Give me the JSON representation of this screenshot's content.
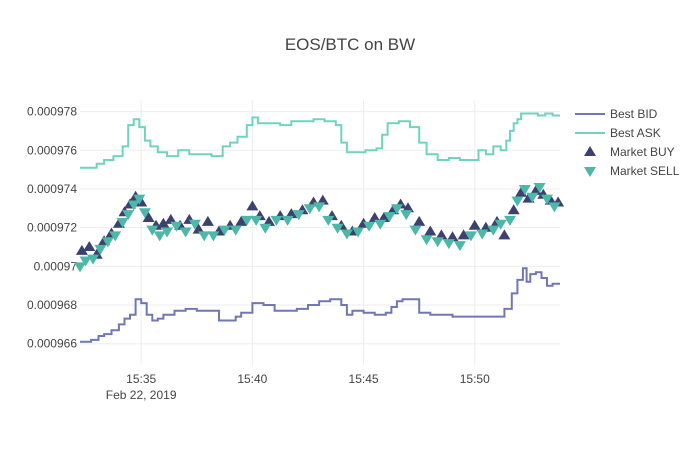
{
  "chart_data": {
    "type": "line",
    "title": "EOS/BTC on BW",
    "xlabel": "",
    "ylabel": "",
    "x_ticks": [
      {
        "label": "15:35",
        "sublabel": "Feb 22, 2019",
        "value": "15:35"
      },
      {
        "label": "15:40",
        "sublabel": "",
        "value": "15:40"
      },
      {
        "label": "15:45",
        "sublabel": "",
        "value": "15:45"
      },
      {
        "label": "15:50",
        "sublabel": "",
        "value": "15:50"
      }
    ],
    "y_ticks": [
      {
        "label": "0.000966",
        "value": 0.000966
      },
      {
        "label": "0.000968",
        "value": 0.000968
      },
      {
        "label": "0.00097",
        "value": 0.00097
      },
      {
        "label": "0.000972",
        "value": 0.000972
      },
      {
        "label": "0.000974",
        "value": 0.000974
      },
      {
        "label": "0.000976",
        "value": 0.000976
      },
      {
        "label": "0.000978",
        "value": 0.000978
      }
    ],
    "xlim": [
      "15:32:15",
      "15:53:50"
    ],
    "ylim": [
      0.0009649,
      0.0009786
    ],
    "grid": true,
    "legend_position": "top-right",
    "colors": {
      "bid": "#7177b5",
      "ask": "#6fd3c0",
      "buy": "#3d4170",
      "sell": "#4cb8a8",
      "grid": "#eeeeee",
      "text": "#444444"
    },
    "series": [
      {
        "name": "Best BID",
        "kind": "step-line",
        "points": [
          [
            "15:32:15",
            0.0009661
          ],
          [
            "15:32:45",
            0.0009662
          ],
          [
            "15:33:05",
            0.0009664
          ],
          [
            "15:33:20",
            0.0009665
          ],
          [
            "15:33:40",
            0.0009667
          ],
          [
            "15:34:00",
            0.000967
          ],
          [
            "15:34:15",
            0.0009673
          ],
          [
            "15:34:30",
            0.0009675
          ],
          [
            "15:34:45",
            0.0009683
          ],
          [
            "15:35:00",
            0.0009681
          ],
          [
            "15:35:15",
            0.0009675
          ],
          [
            "15:35:30",
            0.0009672
          ],
          [
            "15:35:45",
            0.0009673
          ],
          [
            "15:36:00",
            0.0009675
          ],
          [
            "15:36:30",
            0.0009677
          ],
          [
            "15:37:00",
            0.0009678
          ],
          [
            "15:37:30",
            0.0009677
          ],
          [
            "15:38:00",
            0.0009677
          ],
          [
            "15:38:30",
            0.0009672
          ],
          [
            "15:39:00",
            0.0009672
          ],
          [
            "15:39:15",
            0.0009674
          ],
          [
            "15:39:30",
            0.0009676
          ],
          [
            "15:40:00",
            0.0009681
          ],
          [
            "15:40:30",
            0.000968
          ],
          [
            "15:41:00",
            0.0009677
          ],
          [
            "15:41:30",
            0.0009677
          ],
          [
            "15:42:00",
            0.0009678
          ],
          [
            "15:42:30",
            0.000968
          ],
          [
            "15:43:00",
            0.0009682
          ],
          [
            "15:43:30",
            0.0009683
          ],
          [
            "15:44:00",
            0.000968
          ],
          [
            "15:44:15",
            0.0009675
          ],
          [
            "15:44:30",
            0.0009677
          ],
          [
            "15:45:00",
            0.0009676
          ],
          [
            "15:45:30",
            0.0009675
          ],
          [
            "15:46:00",
            0.0009676
          ],
          [
            "15:46:15",
            0.0009679
          ],
          [
            "15:46:30",
            0.0009682
          ],
          [
            "15:46:45",
            0.0009683
          ],
          [
            "15:47:00",
            0.0009683
          ],
          [
            "15:47:30",
            0.0009676
          ],
          [
            "15:48:00",
            0.0009675
          ],
          [
            "15:48:30",
            0.0009675
          ],
          [
            "15:49:00",
            0.0009674
          ],
          [
            "15:49:30",
            0.0009674
          ],
          [
            "15:50:00",
            0.0009674
          ],
          [
            "15:50:30",
            0.0009674
          ],
          [
            "15:51:00",
            0.0009674
          ],
          [
            "15:51:20",
            0.0009678
          ],
          [
            "15:51:40",
            0.0009686
          ],
          [
            "15:51:55",
            0.0009693
          ],
          [
            "15:52:10",
            0.0009699
          ],
          [
            "15:52:20",
            0.0009692
          ],
          [
            "15:52:30",
            0.0009696
          ],
          [
            "15:52:45",
            0.0009697
          ],
          [
            "15:53:00",
            0.0009694
          ],
          [
            "15:53:15",
            0.000969
          ],
          [
            "15:53:30",
            0.0009691
          ],
          [
            "15:53:50",
            0.0009691
          ]
        ]
      },
      {
        "name": "Best ASK",
        "kind": "step-line",
        "points": [
          [
            "15:32:15",
            0.0009751
          ],
          [
            "15:32:45",
            0.0009751
          ],
          [
            "15:33:00",
            0.0009753
          ],
          [
            "15:33:20",
            0.0009755
          ],
          [
            "15:33:45",
            0.0009757
          ],
          [
            "15:34:10",
            0.0009762
          ],
          [
            "15:34:25",
            0.0009773
          ],
          [
            "15:34:40",
            0.0009776
          ],
          [
            "15:34:55",
            0.0009772
          ],
          [
            "15:35:10",
            0.0009765
          ],
          [
            "15:35:25",
            0.0009762
          ],
          [
            "15:35:45",
            0.0009759
          ],
          [
            "15:36:10",
            0.0009757
          ],
          [
            "15:36:40",
            0.000976
          ],
          [
            "15:37:10",
            0.0009758
          ],
          [
            "15:37:40",
            0.0009758
          ],
          [
            "15:38:10",
            0.0009757
          ],
          [
            "15:38:40",
            0.0009762
          ],
          [
            "15:39:00",
            0.0009764
          ],
          [
            "15:39:20",
            0.0009767
          ],
          [
            "15:39:45",
            0.0009773
          ],
          [
            "15:40:00",
            0.0009777
          ],
          [
            "15:40:15",
            0.0009774
          ],
          [
            "15:40:45",
            0.0009774
          ],
          [
            "15:41:15",
            0.0009773
          ],
          [
            "15:41:45",
            0.0009775
          ],
          [
            "15:42:15",
            0.0009775
          ],
          [
            "15:42:45",
            0.0009776
          ],
          [
            "15:43:15",
            0.0009775
          ],
          [
            "15:43:45",
            0.0009773
          ],
          [
            "15:44:00",
            0.0009764
          ],
          [
            "15:44:15",
            0.0009759
          ],
          [
            "15:44:35",
            0.0009759
          ],
          [
            "15:45:05",
            0.000976
          ],
          [
            "15:45:35",
            0.0009761
          ],
          [
            "15:45:50",
            0.0009768
          ],
          [
            "15:46:05",
            0.0009774
          ],
          [
            "15:46:35",
            0.0009775
          ],
          [
            "15:47:05",
            0.0009772
          ],
          [
            "15:47:30",
            0.0009764
          ],
          [
            "15:47:50",
            0.0009758
          ],
          [
            "15:48:20",
            0.0009755
          ],
          [
            "15:48:50",
            0.0009756
          ],
          [
            "15:49:20",
            0.0009755
          ],
          [
            "15:49:50",
            0.0009755
          ],
          [
            "15:50:10",
            0.000976
          ],
          [
            "15:50:30",
            0.0009758
          ],
          [
            "15:50:50",
            0.0009762
          ],
          [
            "15:51:10",
            0.000976
          ],
          [
            "15:51:25",
            0.0009765
          ],
          [
            "15:51:35",
            0.000977
          ],
          [
            "15:51:45",
            0.0009774
          ],
          [
            "15:51:55",
            0.0009776
          ],
          [
            "15:52:05",
            0.0009779
          ],
          [
            "15:52:30",
            0.0009779
          ],
          [
            "15:52:50",
            0.0009778
          ],
          [
            "15:53:10",
            0.0009779
          ],
          [
            "15:53:30",
            0.0009778
          ],
          [
            "15:53:50",
            0.0009778
          ]
        ]
      },
      {
        "name": "Market BUY",
        "kind": "markers",
        "marker": "triangle-up",
        "points": [
          [
            "15:32:20",
            0.0009708
          ],
          [
            "15:32:40",
            0.000971
          ],
          [
            "15:33:00",
            0.0009706
          ],
          [
            "15:33:20",
            0.0009713
          ],
          [
            "15:33:40",
            0.0009717
          ],
          [
            "15:34:00",
            0.0009722
          ],
          [
            "15:34:15",
            0.0009728
          ],
          [
            "15:34:30",
            0.0009732
          ],
          [
            "15:34:45",
            0.0009736
          ],
          [
            "15:35:00",
            0.0009733
          ],
          [
            "15:35:20",
            0.0009725
          ],
          [
            "15:35:40",
            0.0009721
          ],
          [
            "15:36:00",
            0.0009722
          ],
          [
            "15:36:20",
            0.0009724
          ],
          [
            "15:36:45",
            0.0009721
          ],
          [
            "15:37:10",
            0.0009724
          ],
          [
            "15:37:35",
            0.0009719
          ],
          [
            "15:38:00",
            0.0009723
          ],
          [
            "15:38:30",
            0.0009718
          ],
          [
            "15:39:00",
            0.0009721
          ],
          [
            "15:39:30",
            0.0009723
          ],
          [
            "15:40:00",
            0.0009731
          ],
          [
            "15:40:20",
            0.0009726
          ],
          [
            "15:40:45",
            0.0009723
          ],
          [
            "15:41:15",
            0.0009726
          ],
          [
            "15:41:45",
            0.0009727
          ],
          [
            "15:42:15",
            0.0009729
          ],
          [
            "15:42:45",
            0.0009733
          ],
          [
            "15:43:10",
            0.0009734
          ],
          [
            "15:43:35",
            0.0009726
          ],
          [
            "15:44:00",
            0.0009721
          ],
          [
            "15:44:30",
            0.0009718
          ],
          [
            "15:45:00",
            0.0009722
          ],
          [
            "15:45:30",
            0.0009725
          ],
          [
            "15:45:55",
            0.0009725
          ],
          [
            "15:46:20",
            0.0009729
          ],
          [
            "15:46:40",
            0.0009732
          ],
          [
            "15:47:00",
            0.000973
          ],
          [
            "15:47:30",
            0.0009723
          ],
          [
            "15:48:00",
            0.0009718
          ],
          [
            "15:48:30",
            0.0009716
          ],
          [
            "15:49:00",
            0.0009715
          ],
          [
            "15:49:30",
            0.0009716
          ],
          [
            "15:50:00",
            0.0009721
          ],
          [
            "15:50:30",
            0.000972
          ],
          [
            "15:51:00",
            0.0009723
          ],
          [
            "15:51:20",
            0.0009716
          ],
          [
            "15:51:45",
            0.0009729
          ],
          [
            "15:52:05",
            0.0009738
          ],
          [
            "15:52:25",
            0.0009735
          ],
          [
            "15:52:45",
            0.0009739
          ],
          [
            "15:53:05",
            0.0009737
          ],
          [
            "15:53:25",
            0.0009734
          ],
          [
            "15:53:45",
            0.0009733
          ]
        ]
      },
      {
        "name": "Market SELL",
        "kind": "markers",
        "marker": "triangle-down",
        "points": [
          [
            "15:32:15",
            0.00097
          ],
          [
            "15:32:30",
            0.0009703
          ],
          [
            "15:32:50",
            0.0009704
          ],
          [
            "15:33:10",
            0.0009709
          ],
          [
            "15:33:30",
            0.0009713
          ],
          [
            "15:33:50",
            0.0009716
          ],
          [
            "15:34:10",
            0.0009723
          ],
          [
            "15:34:25",
            0.0009727
          ],
          [
            "15:34:40",
            0.0009732
          ],
          [
            "15:34:55",
            0.0009735
          ],
          [
            "15:35:10",
            0.0009728
          ],
          [
            "15:35:30",
            0.0009719
          ],
          [
            "15:35:50",
            0.0009716
          ],
          [
            "15:36:10",
            0.0009718
          ],
          [
            "15:36:35",
            0.0009721
          ],
          [
            "15:37:00",
            0.0009718
          ],
          [
            "15:37:25",
            0.0009722
          ],
          [
            "15:37:50",
            0.0009716
          ],
          [
            "15:38:15",
            0.0009716
          ],
          [
            "15:38:45",
            0.0009719
          ],
          [
            "15:39:15",
            0.0009719
          ],
          [
            "15:39:45",
            0.0009724
          ],
          [
            "15:40:10",
            0.0009724
          ],
          [
            "15:40:35",
            0.000972
          ],
          [
            "15:41:05",
            0.0009724
          ],
          [
            "15:41:35",
            0.0009724
          ],
          [
            "15:42:05",
            0.0009727
          ],
          [
            "15:42:35",
            0.000973
          ],
          [
            "15:43:00",
            0.0009731
          ],
          [
            "15:43:25",
            0.0009724
          ],
          [
            "15:43:50",
            0.000972
          ],
          [
            "15:44:15",
            0.0009717
          ],
          [
            "15:44:45",
            0.0009718
          ],
          [
            "15:45:15",
            0.0009721
          ],
          [
            "15:45:45",
            0.0009722
          ],
          [
            "15:46:10",
            0.0009726
          ],
          [
            "15:46:30",
            0.000973
          ],
          [
            "15:46:55",
            0.0009727
          ],
          [
            "15:47:20",
            0.0009719
          ],
          [
            "15:47:50",
            0.0009714
          ],
          [
            "15:48:20",
            0.0009713
          ],
          [
            "15:48:50",
            0.0009712
          ],
          [
            "15:49:20",
            0.0009711
          ],
          [
            "15:49:50",
            0.0009716
          ],
          [
            "15:50:20",
            0.0009717
          ],
          [
            "15:50:50",
            0.0009719
          ],
          [
            "15:51:10",
            0.0009722
          ],
          [
            "15:51:35",
            0.0009724
          ],
          [
            "15:51:55",
            0.0009734
          ],
          [
            "15:52:15",
            0.000974
          ],
          [
            "15:52:35",
            0.0009736
          ],
          [
            "15:52:55",
            0.0009741
          ],
          [
            "15:53:15",
            0.0009735
          ],
          [
            "15:53:35",
            0.0009731
          ]
        ]
      }
    ]
  }
}
